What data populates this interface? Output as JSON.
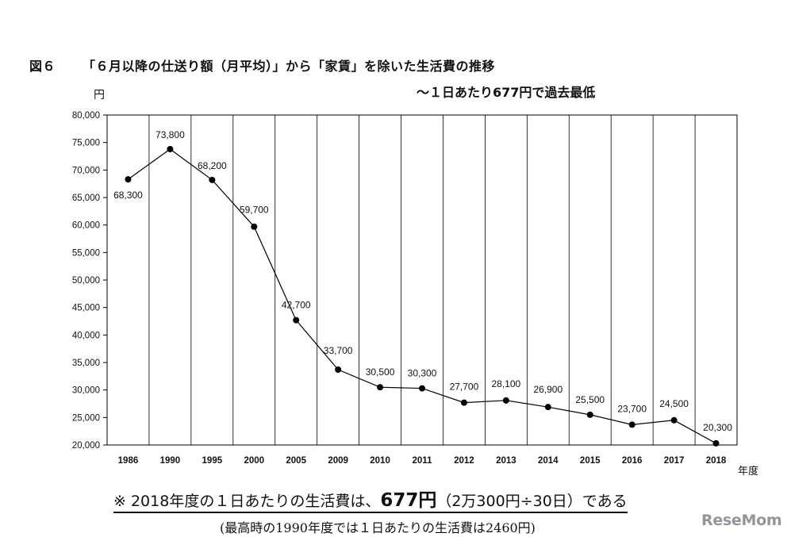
{
  "figure": {
    "label": "図６",
    "title": "「６月以降の仕送り額（月平均）」から「家賃」を除いた生活費の推移",
    "subtitle": "～１日あたり677円で過去最低"
  },
  "chart_data": {
    "type": "line",
    "ylabel": "円",
    "xlabel": "年度",
    "ylim": [
      20000,
      80000
    ],
    "ytick_step": 5000,
    "yticks": [
      "20,000",
      "25,000",
      "30,000",
      "35,000",
      "40,000",
      "45,000",
      "50,000",
      "55,000",
      "60,000",
      "65,000",
      "70,000",
      "75,000",
      "80,000"
    ],
    "grid": "vertical",
    "categories": [
      "1986",
      "1990",
      "1995",
      "2000",
      "2005",
      "2009",
      "2010",
      "2011",
      "2012",
      "2013",
      "2014",
      "2015",
      "2016",
      "2017",
      "2018"
    ],
    "values": [
      68300,
      73800,
      68200,
      59700,
      42700,
      33700,
      30500,
      30300,
      27700,
      28100,
      26900,
      25500,
      23700,
      24500,
      20300
    ],
    "data_labels": [
      "68,300",
      "73,800",
      "68,200",
      "59,700",
      "42,700",
      "33,700",
      "30,500",
      "30,300",
      "27,700",
      "28,100",
      "26,900",
      "25,500",
      "23,700",
      "24,500",
      "20,300"
    ],
    "line_color": "#000000",
    "marker": "circle"
  },
  "notes": {
    "main_prefix": "※ 2018年度の１日あたりの生活費は、",
    "main_strong": "677円",
    "main_suffix": "（2万300円÷30日）である",
    "sub": "(最高時の1990年度では１日あたりの生活費は2460円)"
  },
  "logo": {
    "text": "ReseMom"
  }
}
